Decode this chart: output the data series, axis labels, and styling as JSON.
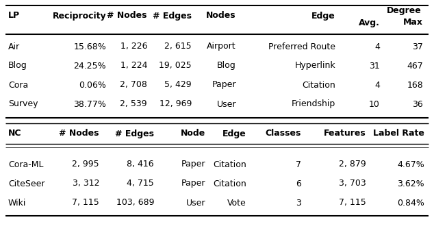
{
  "lp_data": [
    [
      "Air",
      "15.68%",
      "1, 226",
      "2, 615",
      "Airport",
      "Preferred Route",
      "4",
      "37"
    ],
    [
      "Blog",
      "24.25%",
      "1, 224",
      "19, 025",
      "Blog",
      "Hyperlink",
      "31",
      "467"
    ],
    [
      "Cora",
      "0.06%",
      "2, 708",
      "5, 429",
      "Paper",
      "Citation",
      "4",
      "168"
    ],
    [
      "Survey",
      "38.77%",
      "2, 539",
      "12, 969",
      "User",
      "Friendship",
      "10",
      "36"
    ]
  ],
  "nc_data": [
    [
      "Cora-ML",
      "2, 995",
      "8, 416",
      "Paper",
      "Citation",
      "7",
      "2, 879",
      "4.67%"
    ],
    [
      "CiteSeer",
      "3, 312",
      "4, 715",
      "Paper",
      "Citation",
      "6",
      "3, 703",
      "3.62%"
    ],
    [
      "Wiki",
      "7, 115",
      "103, 689",
      "User",
      "Vote",
      "3",
      "7, 115",
      "0.84%"
    ]
  ],
  "bg_color": "#ffffff",
  "text_color": "#000000",
  "line_color": "#000000",
  "fontsize": 9.0,
  "bold_fontsize": 9.0
}
